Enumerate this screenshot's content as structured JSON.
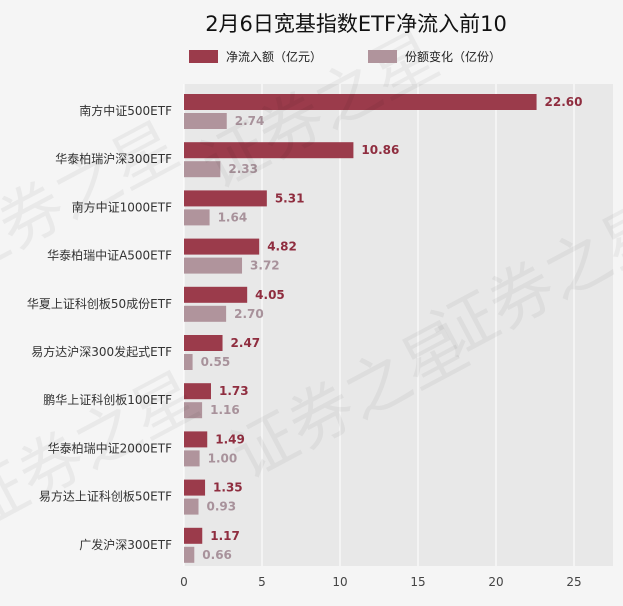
{
  "chart_data": {
    "type": "bar",
    "orientation": "horizontal",
    "title": "2月6日宽基指数ETF净流入前10",
    "categories": [
      "南方中证500ETF",
      "华泰柏瑞沪深300ETF",
      "南方中证1000ETF",
      "华泰柏瑞中证A500ETF",
      "华夏上证科创板50成份ETF",
      "易方达沪深300发起式ETF",
      "鹏华上证科创板100ETF",
      "华泰柏瑞中证2000ETF",
      "易方达上证科创板50ETF",
      "广发沪深300ETF"
    ],
    "series": [
      {
        "name": "净流入额（亿元）",
        "color": "#9b3b4b",
        "values": [
          22.6,
          10.86,
          5.31,
          4.82,
          4.05,
          2.47,
          1.73,
          1.49,
          1.35,
          1.17
        ],
        "labels": [
          "22.60",
          "10.86",
          "5.31",
          "4.82",
          "4.05",
          "2.47",
          "1.73",
          "1.49",
          "1.35",
          "1.17"
        ]
      },
      {
        "name": "份额变化（亿份）",
        "color": "#b0949c",
        "values": [
          2.74,
          2.33,
          1.64,
          3.72,
          2.7,
          0.55,
          1.16,
          1.0,
          0.93,
          0.66
        ],
        "labels": [
          "2.74",
          "2.33",
          "1.64",
          "3.72",
          "2.70",
          "0.55",
          "1.16",
          "1.00",
          "0.93",
          "0.66"
        ]
      }
    ],
    "xlim": [
      0,
      27.5
    ],
    "xticks": [
      0,
      5,
      10,
      15,
      20,
      25
    ],
    "xtick_labels": [
      "0",
      "5",
      "10",
      "15",
      "20",
      "25"
    ],
    "grid": true,
    "legend_position": "top",
    "plot_background": "#e8e8e8"
  },
  "watermark": {
    "text": "证券之星"
  }
}
